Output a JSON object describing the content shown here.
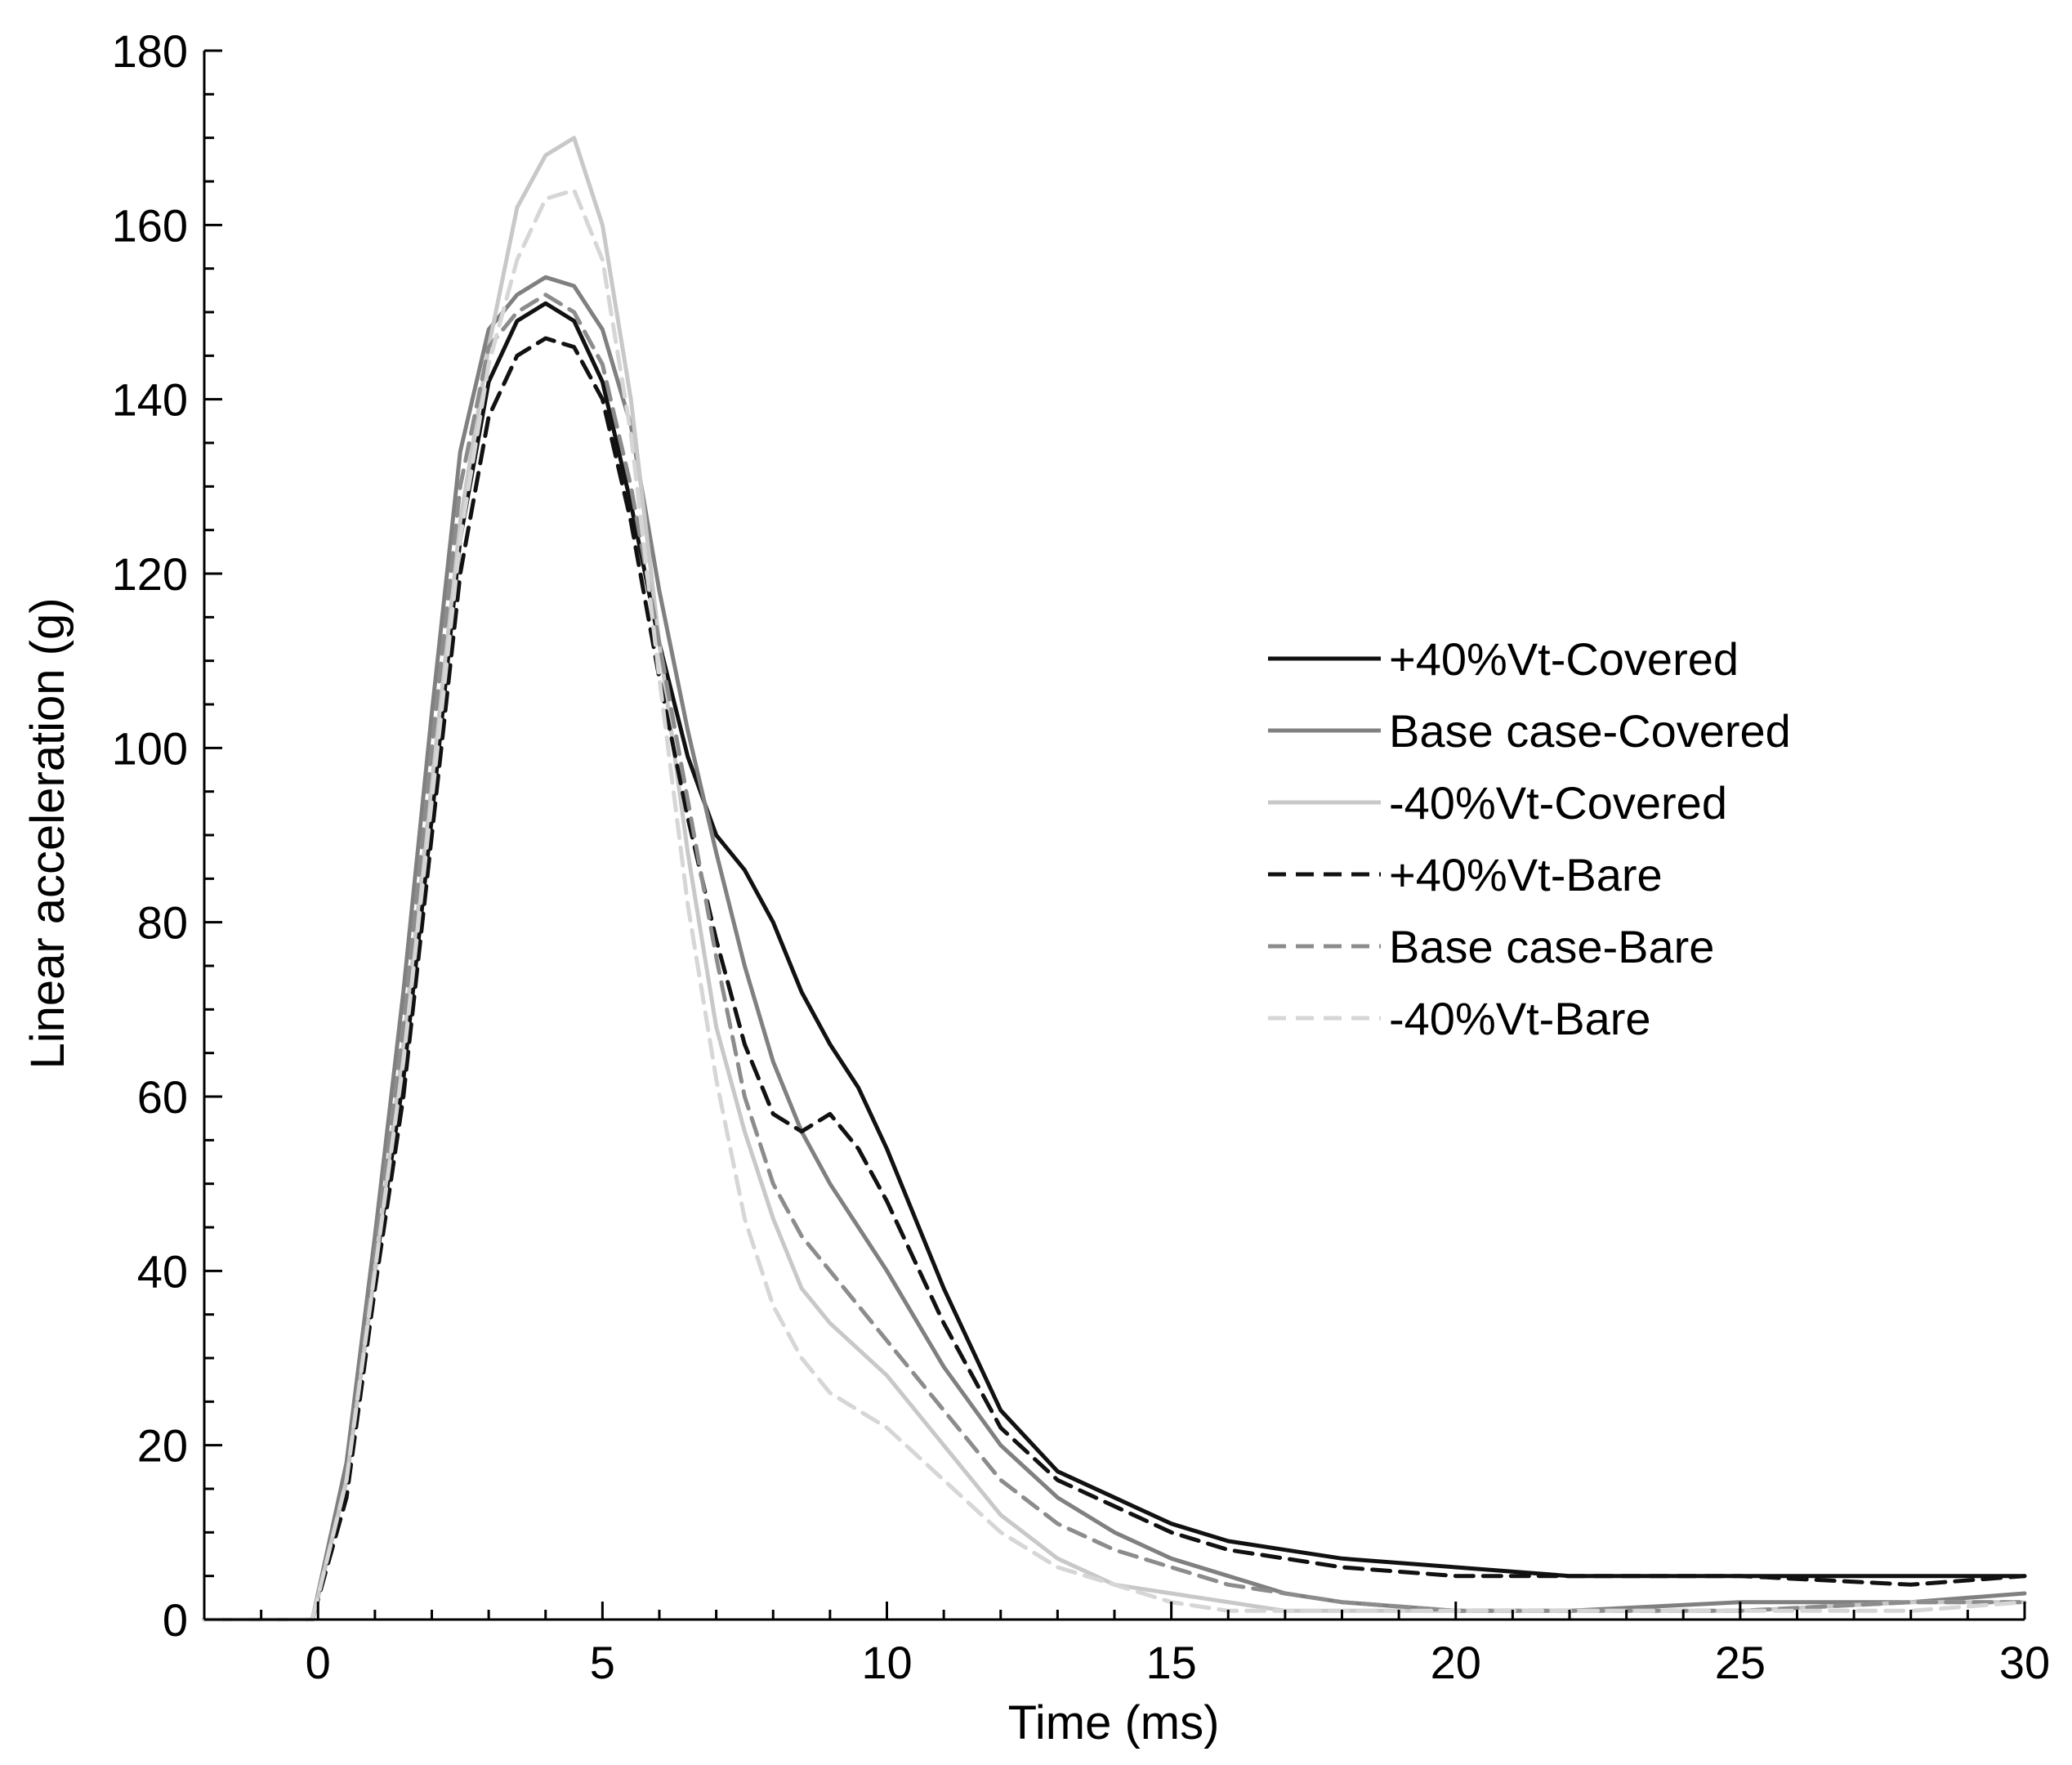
{
  "chart_data": {
    "type": "line",
    "title": "",
    "xlabel": "Time (ms)",
    "ylabel": "Linear acceleration (g)",
    "xlim": [
      -2,
      30
    ],
    "ylim": [
      0,
      180
    ],
    "xticks": [
      0,
      5,
      10,
      15,
      20,
      25,
      30
    ],
    "yticks": [
      0,
      20,
      40,
      60,
      80,
      100,
      120,
      140,
      160,
      180
    ],
    "grid": false,
    "legend_position": "right",
    "series": [
      {
        "name": "+40%Vt-Covered",
        "color": "#111111",
        "dash": "solid",
        "x": [
          -2,
          -0.1,
          0.5,
          1.0,
          1.5,
          2.0,
          2.5,
          3.0,
          3.5,
          4.0,
          4.5,
          5.0,
          5.5,
          6.0,
          6.5,
          7.0,
          7.5,
          8.0,
          8.5,
          9.0,
          9.5,
          10.0,
          11.0,
          12.0,
          13.0,
          14.0,
          15.0,
          16.0,
          17.0,
          18.0,
          20.0,
          22.0,
          25.0,
          28.0,
          30.0
        ],
        "y": [
          0,
          0,
          16,
          40,
          62,
          92,
          124,
          142,
          149,
          151,
          149,
          142,
          128,
          112,
          99,
          90,
          86,
          80,
          72,
          66,
          61,
          54,
          38,
          24,
          17,
          14,
          11,
          9,
          8,
          7,
          6,
          5,
          5,
          5,
          5
        ]
      },
      {
        "name": "Base case-Covered",
        "color": "#808080",
        "dash": "solid",
        "x": [
          -2,
          -0.1,
          0.5,
          1.0,
          1.5,
          2.0,
          2.5,
          3.0,
          3.5,
          4.0,
          4.5,
          5.0,
          5.5,
          6.0,
          6.5,
          7.0,
          7.5,
          8.0,
          8.5,
          9.0,
          9.5,
          10.0,
          11.0,
          12.0,
          13.0,
          14.0,
          15.0,
          16.0,
          17.0,
          18.0,
          20.0,
          22.0,
          25.0,
          28.0,
          30.0
        ],
        "y": [
          0,
          0,
          18,
          44,
          72,
          104,
          134,
          148,
          152,
          154,
          153,
          148,
          137,
          118,
          102,
          88,
          75,
          64,
          56,
          50,
          45,
          40,
          29,
          20,
          14,
          10,
          7,
          5,
          3,
          2,
          1,
          1,
          2,
          2,
          3
        ]
      },
      {
        "name": "-40%Vt-Covered",
        "color": "#c8c8c8",
        "dash": "solid",
        "x": [
          -2,
          -0.1,
          0.5,
          1.0,
          1.5,
          2.0,
          2.5,
          3.0,
          3.5,
          4.0,
          4.5,
          5.0,
          5.5,
          6.0,
          6.5,
          7.0,
          7.5,
          8.0,
          8.5,
          9.0,
          9.5,
          10.0,
          11.0,
          12.0,
          13.0,
          14.0,
          15.0,
          16.0,
          17.0,
          18.0,
          20.0,
          22.0,
          25.0,
          28.0,
          30.0
        ],
        "y": [
          0,
          0,
          16,
          40,
          66,
          96,
          126,
          146,
          162,
          168,
          170,
          160,
          140,
          112,
          88,
          68,
          56,
          46,
          38,
          34,
          31,
          28,
          20,
          12,
          7,
          4,
          3,
          2,
          1,
          1,
          1,
          1,
          1,
          2,
          2
        ]
      },
      {
        "name": "+40%Vt-Bare",
        "color": "#111111",
        "dash": "dashed",
        "x": [
          -2,
          -0.1,
          0.5,
          1.0,
          1.5,
          2.0,
          2.5,
          3.0,
          3.5,
          4.0,
          4.5,
          5.0,
          5.5,
          6.0,
          6.5,
          7.0,
          7.5,
          8.0,
          8.5,
          9.0,
          9.5,
          10.0,
          11.0,
          12.0,
          13.0,
          14.0,
          15.0,
          16.0,
          17.0,
          18.0,
          20.0,
          22.0,
          25.0,
          28.0,
          30.0
        ],
        "y": [
          0,
          0,
          14,
          38,
          60,
          90,
          120,
          138,
          145,
          147,
          146,
          140,
          126,
          108,
          92,
          78,
          66,
          58,
          56,
          58,
          54,
          48,
          34,
          22,
          16,
          13,
          10,
          8,
          7,
          6,
          5,
          5,
          5,
          4,
          5
        ]
      },
      {
        "name": "Base case-Bare",
        "color": "#8c8c8c",
        "dash": "dashed",
        "x": [
          -2,
          -0.1,
          0.5,
          1.0,
          1.5,
          2.0,
          2.5,
          3.0,
          3.5,
          4.0,
          4.5,
          5.0,
          5.5,
          6.0,
          6.5,
          7.0,
          7.5,
          8.0,
          8.5,
          9.0,
          9.5,
          10.0,
          11.0,
          12.0,
          13.0,
          14.0,
          15.0,
          16.0,
          17.0,
          18.0,
          20.0,
          22.0,
          25.0,
          28.0,
          30.0
        ],
        "y": [
          0,
          0,
          16,
          42,
          68,
          100,
          130,
          146,
          150,
          152,
          150,
          144,
          130,
          112,
          94,
          76,
          60,
          50,
          44,
          40,
          36,
          32,
          24,
          16,
          11,
          8,
          6,
          4,
          3,
          2,
          1,
          1,
          1,
          2,
          2
        ]
      },
      {
        "name": "-40%Vt-Bare",
        "color": "#d6d6d6",
        "dash": "dashed",
        "x": [
          -2,
          -0.1,
          0.5,
          1.0,
          1.5,
          2.0,
          2.5,
          3.0,
          3.5,
          4.0,
          4.5,
          5.0,
          5.5,
          6.0,
          6.5,
          7.0,
          7.5,
          8.0,
          8.5,
          9.0,
          9.5,
          10.0,
          11.0,
          12.0,
          13.0,
          14.0,
          15.0,
          16.0,
          17.0,
          18.0,
          20.0,
          22.0,
          25.0,
          28.0,
          30.0
        ],
        "y": [
          0,
          0,
          16,
          40,
          64,
          94,
          124,
          144,
          156,
          163,
          164,
          156,
          136,
          108,
          82,
          62,
          46,
          36,
          30,
          26,
          24,
          22,
          16,
          10,
          6,
          4,
          2,
          1,
          1,
          1,
          1,
          1,
          1,
          1,
          2
        ]
      }
    ]
  }
}
